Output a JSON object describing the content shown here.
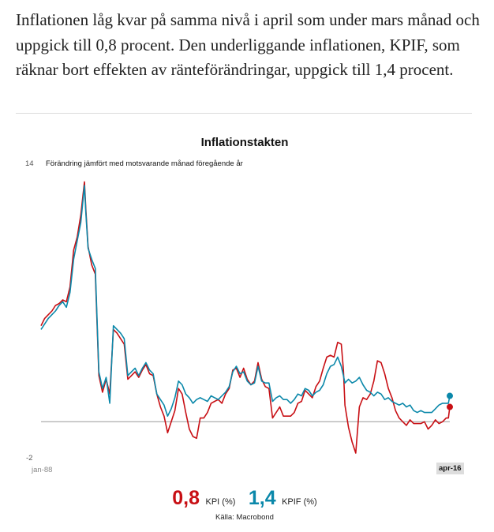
{
  "article": {
    "paragraph": "Inflationen  låg kvar på samma nivå i april som under mars månad och uppgick till 0,8 procent. Den underliggande inflationen, KPIF, som räknar bort effekten av ränteförändringar, uppgick till 1,4 procent."
  },
  "legend": {
    "kpi_value": "0,8",
    "kpi_label": "KPI (%)",
    "kpif_value": "1,4",
    "kpif_label": "KPIF (%)"
  },
  "source": "Källa: Macrobond",
  "chart_data": {
    "type": "line",
    "title": "Inflationstakten",
    "subtitle": "Förändring jämfört med motsvarande månad föregående år",
    "ylim": [
      -2,
      14
    ],
    "y_tick_top": "14",
    "y_tick_bottom": "-2",
    "x_start_label": "jan-88",
    "x_end_label": "apr-16",
    "xlim": [
      1988.0,
      2016.25
    ],
    "baseline": 0,
    "grid": false,
    "legend_position": "bottom",
    "colors": {
      "kpi": "#c80f14",
      "kpif": "#0b88aa"
    },
    "series": [
      {
        "name": "KPI",
        "color": "#c80f14",
        "points": [
          [
            1988.0,
            5.2
          ],
          [
            1988.25,
            5.6
          ],
          [
            1988.5,
            5.8
          ],
          [
            1988.75,
            6.0
          ],
          [
            1989.0,
            6.3
          ],
          [
            1989.25,
            6.4
          ],
          [
            1989.5,
            6.6
          ],
          [
            1989.75,
            6.5
          ],
          [
            1990.0,
            7.3
          ],
          [
            1990.25,
            9.3
          ],
          [
            1990.5,
            10.0
          ],
          [
            1990.75,
            11.2
          ],
          [
            1991.0,
            13.0
          ],
          [
            1991.1,
            11.5
          ],
          [
            1991.25,
            9.5
          ],
          [
            1991.5,
            8.5
          ],
          [
            1991.75,
            8.0
          ],
          [
            1992.0,
            2.5
          ],
          [
            1992.25,
            1.6
          ],
          [
            1992.5,
            2.3
          ],
          [
            1992.75,
            1.5
          ],
          [
            1993.0,
            5.0
          ],
          [
            1993.25,
            4.8
          ],
          [
            1993.5,
            4.5
          ],
          [
            1993.75,
            4.2
          ],
          [
            1994.0,
            2.3
          ],
          [
            1994.25,
            2.5
          ],
          [
            1994.5,
            2.7
          ],
          [
            1994.75,
            2.4
          ],
          [
            1995.0,
            2.8
          ],
          [
            1995.25,
            3.1
          ],
          [
            1995.5,
            2.6
          ],
          [
            1995.75,
            2.5
          ],
          [
            1996.0,
            1.5
          ],
          [
            1996.25,
            0.8
          ],
          [
            1996.5,
            0.3
          ],
          [
            1996.75,
            -0.6
          ],
          [
            1997.0,
            0.0
          ],
          [
            1997.25,
            0.6
          ],
          [
            1997.5,
            1.8
          ],
          [
            1997.75,
            1.5
          ],
          [
            1998.0,
            0.5
          ],
          [
            1998.25,
            -0.4
          ],
          [
            1998.5,
            -0.8
          ],
          [
            1998.75,
            -0.9
          ],
          [
            1999.0,
            0.2
          ],
          [
            1999.25,
            0.2
          ],
          [
            1999.5,
            0.5
          ],
          [
            1999.75,
            1.0
          ],
          [
            2000.0,
            1.1
          ],
          [
            2000.25,
            1.2
          ],
          [
            2000.5,
            1.0
          ],
          [
            2000.75,
            1.5
          ],
          [
            2001.0,
            1.8
          ],
          [
            2001.25,
            2.8
          ],
          [
            2001.5,
            2.9
          ],
          [
            2001.75,
            2.4
          ],
          [
            2002.0,
            2.9
          ],
          [
            2002.25,
            2.3
          ],
          [
            2002.5,
            2.0
          ],
          [
            2002.75,
            2.2
          ],
          [
            2003.0,
            3.2
          ],
          [
            2003.25,
            2.3
          ],
          [
            2003.5,
            1.9
          ],
          [
            2003.75,
            1.8
          ],
          [
            2004.0,
            0.2
          ],
          [
            2004.25,
            0.5
          ],
          [
            2004.5,
            0.8
          ],
          [
            2004.75,
            0.3
          ],
          [
            2005.0,
            0.3
          ],
          [
            2005.25,
            0.3
          ],
          [
            2005.5,
            0.5
          ],
          [
            2005.75,
            1.0
          ],
          [
            2006.0,
            1.1
          ],
          [
            2006.25,
            1.7
          ],
          [
            2006.5,
            1.5
          ],
          [
            2006.75,
            1.3
          ],
          [
            2007.0,
            1.9
          ],
          [
            2007.25,
            2.2
          ],
          [
            2007.5,
            2.9
          ],
          [
            2007.75,
            3.5
          ],
          [
            2008.0,
            3.6
          ],
          [
            2008.25,
            3.5
          ],
          [
            2008.5,
            4.3
          ],
          [
            2008.75,
            4.2
          ],
          [
            2008.9,
            2.8
          ],
          [
            2009.0,
            0.9
          ],
          [
            2009.25,
            -0.3
          ],
          [
            2009.5,
            -1.1
          ],
          [
            2009.75,
            -1.7
          ],
          [
            2010.0,
            0.8
          ],
          [
            2010.25,
            1.3
          ],
          [
            2010.5,
            1.2
          ],
          [
            2010.75,
            1.5
          ],
          [
            2011.0,
            2.2
          ],
          [
            2011.25,
            3.3
          ],
          [
            2011.5,
            3.2
          ],
          [
            2011.75,
            2.6
          ],
          [
            2012.0,
            1.8
          ],
          [
            2012.25,
            1.3
          ],
          [
            2012.5,
            0.6
          ],
          [
            2012.75,
            0.2
          ],
          [
            2013.0,
            0.0
          ],
          [
            2013.25,
            -0.2
          ],
          [
            2013.5,
            0.1
          ],
          [
            2013.75,
            -0.1
          ],
          [
            2014.0,
            -0.1
          ],
          [
            2014.25,
            -0.1
          ],
          [
            2014.5,
            0.0
          ],
          [
            2014.75,
            -0.4
          ],
          [
            2015.0,
            -0.2
          ],
          [
            2015.25,
            0.1
          ],
          [
            2015.5,
            -0.1
          ],
          [
            2015.75,
            0.0
          ],
          [
            2016.0,
            0.2
          ],
          [
            2016.15,
            0.2
          ],
          [
            2016.25,
            0.8
          ]
        ]
      },
      {
        "name": "KPIF",
        "color": "#0b88aa",
        "points": [
          [
            1988.0,
            5.0
          ],
          [
            1988.25,
            5.3
          ],
          [
            1988.5,
            5.6
          ],
          [
            1988.75,
            5.8
          ],
          [
            1989.0,
            6.0
          ],
          [
            1989.25,
            6.3
          ],
          [
            1989.5,
            6.5
          ],
          [
            1989.75,
            6.2
          ],
          [
            1990.0,
            7.0
          ],
          [
            1990.25,
            8.8
          ],
          [
            1990.5,
            9.8
          ],
          [
            1990.75,
            10.8
          ],
          [
            1991.0,
            12.8
          ],
          [
            1991.1,
            11.3
          ],
          [
            1991.25,
            9.4
          ],
          [
            1991.5,
            8.8
          ],
          [
            1991.75,
            8.3
          ],
          [
            1992.0,
            2.7
          ],
          [
            1992.25,
            1.8
          ],
          [
            1992.5,
            2.4
          ],
          [
            1992.75,
            1.0
          ],
          [
            1993.0,
            5.2
          ],
          [
            1993.25,
            5.0
          ],
          [
            1993.5,
            4.8
          ],
          [
            1993.75,
            4.5
          ],
          [
            1994.0,
            2.5
          ],
          [
            1994.25,
            2.7
          ],
          [
            1994.5,
            2.9
          ],
          [
            1994.75,
            2.5
          ],
          [
            1995.0,
            2.9
          ],
          [
            1995.25,
            3.2
          ],
          [
            1995.5,
            2.8
          ],
          [
            1995.75,
            2.6
          ],
          [
            1996.0,
            1.5
          ],
          [
            1996.25,
            1.2
          ],
          [
            1996.5,
            0.9
          ],
          [
            1996.75,
            0.3
          ],
          [
            1997.0,
            0.7
          ],
          [
            1997.25,
            1.3
          ],
          [
            1997.5,
            2.2
          ],
          [
            1997.75,
            2.0
          ],
          [
            1998.0,
            1.5
          ],
          [
            1998.25,
            1.3
          ],
          [
            1998.5,
            1.0
          ],
          [
            1998.75,
            1.2
          ],
          [
            1999.0,
            1.3
          ],
          [
            1999.25,
            1.2
          ],
          [
            1999.5,
            1.1
          ],
          [
            1999.75,
            1.4
          ],
          [
            2000.0,
            1.3
          ],
          [
            2000.25,
            1.2
          ],
          [
            2000.5,
            1.4
          ],
          [
            2000.75,
            1.6
          ],
          [
            2001.0,
            1.9
          ],
          [
            2001.25,
            2.7
          ],
          [
            2001.5,
            3.0
          ],
          [
            2001.75,
            2.6
          ],
          [
            2002.0,
            2.7
          ],
          [
            2002.25,
            2.2
          ],
          [
            2002.5,
            2.0
          ],
          [
            2002.75,
            2.1
          ],
          [
            2003.0,
            3.0
          ],
          [
            2003.25,
            2.2
          ],
          [
            2003.5,
            2.1
          ],
          [
            2003.75,
            2.1
          ],
          [
            2004.0,
            1.1
          ],
          [
            2004.25,
            1.3
          ],
          [
            2004.5,
            1.4
          ],
          [
            2004.75,
            1.2
          ],
          [
            2005.0,
            1.2
          ],
          [
            2005.25,
            1.0
          ],
          [
            2005.5,
            1.2
          ],
          [
            2005.75,
            1.5
          ],
          [
            2006.0,
            1.4
          ],
          [
            2006.25,
            1.8
          ],
          [
            2006.5,
            1.7
          ],
          [
            2006.75,
            1.4
          ],
          [
            2007.0,
            1.6
          ],
          [
            2007.25,
            1.7
          ],
          [
            2007.5,
            2.0
          ],
          [
            2007.75,
            2.6
          ],
          [
            2008.0,
            3.0
          ],
          [
            2008.25,
            3.1
          ],
          [
            2008.5,
            3.5
          ],
          [
            2008.75,
            3.0
          ],
          [
            2008.9,
            2.5
          ],
          [
            2009.0,
            2.1
          ],
          [
            2009.25,
            2.3
          ],
          [
            2009.5,
            2.1
          ],
          [
            2009.75,
            2.2
          ],
          [
            2010.0,
            2.4
          ],
          [
            2010.25,
            2.0
          ],
          [
            2010.5,
            1.7
          ],
          [
            2010.75,
            1.6
          ],
          [
            2011.0,
            1.4
          ],
          [
            2011.25,
            1.6
          ],
          [
            2011.5,
            1.5
          ],
          [
            2011.75,
            1.2
          ],
          [
            2012.0,
            1.3
          ],
          [
            2012.25,
            1.1
          ],
          [
            2012.5,
            1.0
          ],
          [
            2012.75,
            0.9
          ],
          [
            2013.0,
            1.0
          ],
          [
            2013.25,
            0.8
          ],
          [
            2013.5,
            0.9
          ],
          [
            2013.75,
            0.6
          ],
          [
            2014.0,
            0.5
          ],
          [
            2014.25,
            0.6
          ],
          [
            2014.5,
            0.5
          ],
          [
            2014.75,
            0.5
          ],
          [
            2015.0,
            0.5
          ],
          [
            2015.25,
            0.7
          ],
          [
            2015.5,
            0.9
          ],
          [
            2015.75,
            1.0
          ],
          [
            2016.0,
            1.0
          ],
          [
            2016.15,
            1.0
          ],
          [
            2016.25,
            1.4
          ]
        ]
      }
    ]
  }
}
